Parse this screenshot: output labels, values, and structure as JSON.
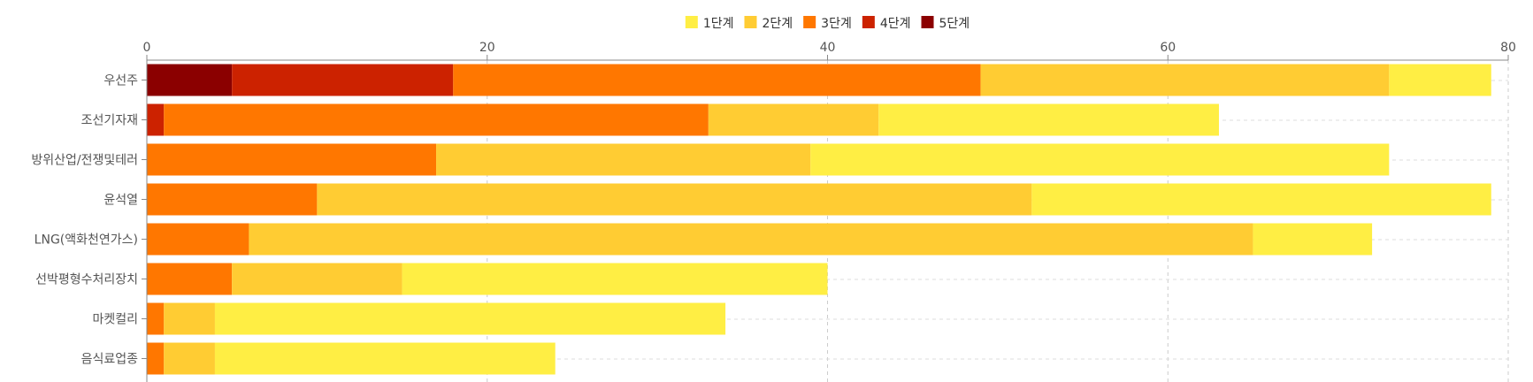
{
  "chart_data": {
    "type": "bar",
    "orientation": "horizontal",
    "stacked": true,
    "title": "",
    "xlabel": "",
    "ylabel": "",
    "xlim": [
      0,
      80
    ],
    "xticks": [
      0,
      20,
      40,
      60,
      80
    ],
    "x_axis_position": "top",
    "grid": true,
    "legend_position": "top-center",
    "categories": [
      "우선주",
      "조선기자재",
      "방위산업/전쟁및테러",
      "윤석열",
      "LNG(액화천연가스)",
      "선박평형수처리장치",
      "마켓컬리",
      "음식료업종"
    ],
    "series": [
      {
        "name": "5단계",
        "color": "#8b0000",
        "values": [
          5,
          0,
          0,
          0,
          0,
          0,
          0,
          0
        ]
      },
      {
        "name": "4단계",
        "color": "#cc2200",
        "values": [
          13,
          1,
          0,
          0,
          0,
          0,
          0,
          0
        ]
      },
      {
        "name": "3단계",
        "color": "#ff7700",
        "values": [
          31,
          32,
          17,
          10,
          6,
          5,
          1,
          1
        ]
      },
      {
        "name": "2단계",
        "color": "#ffcc33",
        "values": [
          24,
          10,
          22,
          42,
          59,
          10,
          3,
          3
        ]
      },
      {
        "name": "1단계",
        "color": "#ffee44",
        "values": [
          6,
          20,
          34,
          27,
          7,
          25,
          30,
          20
        ]
      }
    ],
    "legend_order": [
      "1단계",
      "2단계",
      "3단계",
      "4단계",
      "5단계"
    ]
  }
}
